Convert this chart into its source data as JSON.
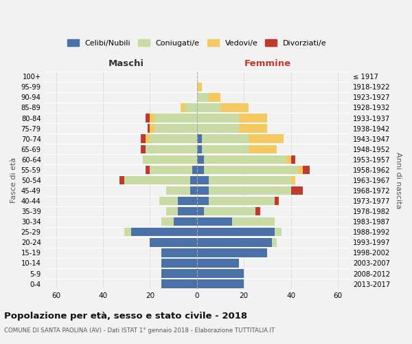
{
  "age_groups": [
    "0-4",
    "5-9",
    "10-14",
    "15-19",
    "20-24",
    "25-29",
    "30-34",
    "35-39",
    "40-44",
    "45-49",
    "50-54",
    "55-59",
    "60-64",
    "65-69",
    "70-74",
    "75-79",
    "80-84",
    "85-89",
    "90-94",
    "95-99",
    "100+"
  ],
  "birth_years": [
    "2013-2017",
    "2008-2012",
    "2003-2007",
    "1998-2002",
    "1993-1997",
    "1988-1992",
    "1983-1987",
    "1978-1982",
    "1973-1977",
    "1968-1972",
    "1963-1967",
    "1958-1962",
    "1953-1957",
    "1948-1952",
    "1943-1947",
    "1938-1942",
    "1933-1937",
    "1928-1932",
    "1923-1927",
    "1918-1922",
    "≤ 1917"
  ],
  "male": {
    "celibi": [
      15,
      15,
      15,
      15,
      20,
      28,
      10,
      8,
      8,
      3,
      3,
      2,
      0,
      0,
      0,
      0,
      0,
      0,
      0,
      0,
      0
    ],
    "coniugati": [
      0,
      0,
      0,
      0,
      0,
      3,
      5,
      5,
      8,
      10,
      28,
      18,
      23,
      22,
      20,
      18,
      18,
      5,
      0,
      0,
      0
    ],
    "vedovi": [
      0,
      0,
      0,
      0,
      0,
      0,
      0,
      0,
      0,
      0,
      0,
      0,
      0,
      0,
      2,
      2,
      2,
      2,
      0,
      0,
      0
    ],
    "divorziati": [
      0,
      0,
      0,
      0,
      0,
      0,
      0,
      0,
      0,
      0,
      2,
      2,
      0,
      2,
      2,
      1,
      2,
      0,
      0,
      0,
      0
    ]
  },
  "female": {
    "nubili": [
      20,
      20,
      18,
      30,
      32,
      33,
      15,
      3,
      5,
      5,
      5,
      3,
      3,
      2,
      2,
      0,
      0,
      0,
      0,
      0,
      0
    ],
    "coniugate": [
      0,
      0,
      0,
      0,
      2,
      3,
      18,
      22,
      28,
      35,
      35,
      40,
      35,
      20,
      20,
      18,
      18,
      10,
      5,
      0,
      0
    ],
    "vedove": [
      0,
      0,
      0,
      0,
      0,
      0,
      0,
      0,
      0,
      0,
      2,
      2,
      2,
      12,
      15,
      12,
      12,
      12,
      5,
      2,
      0
    ],
    "divorziate": [
      0,
      0,
      0,
      0,
      0,
      0,
      0,
      2,
      2,
      5,
      0,
      3,
      2,
      0,
      0,
      0,
      0,
      0,
      0,
      0,
      0
    ]
  },
  "colors": {
    "celibi_nubili": "#4a72a8",
    "coniugati": "#c8dba4",
    "vedovi": "#f5c862",
    "divorziati": "#c0392b"
  },
  "title": "Popolazione per età, sesso e stato civile - 2018",
  "subtitle": "COMUNE DI SANTA PAOLINA (AV) - Dati ISTAT 1° gennaio 2018 - Elaborazione TUTTITALIA.IT",
  "xlabel_left": "Maschi",
  "xlabel_right": "Femmine",
  "ylabel_left": "Fasce di età",
  "ylabel_right": "Anni di nascita",
  "xlim": 65,
  "background_color": "#f2f2f2",
  "grid_color": "#cccccc"
}
